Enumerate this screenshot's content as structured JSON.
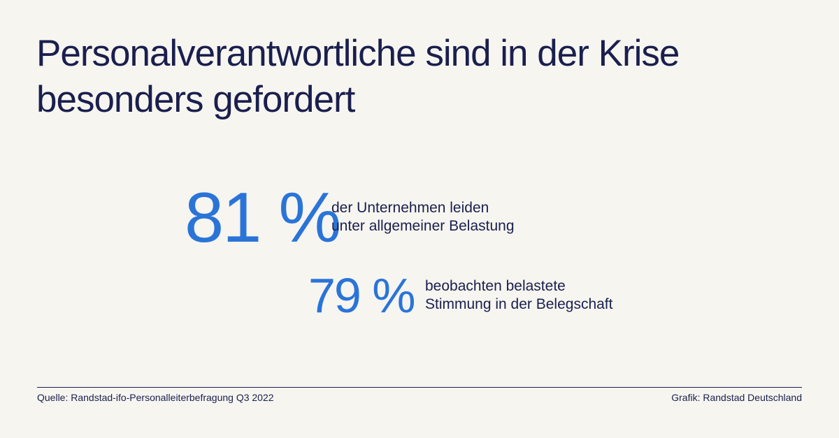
{
  "title": {
    "lines": [
      "Personalverantwortliche sind in der Krise",
      "besonders gefordert"
    ]
  },
  "stats": [
    {
      "value": "81 %",
      "description": [
        "der Unternehmen leiden",
        "unter allgemeiner Belastung"
      ]
    },
    {
      "value": "79 %",
      "description": [
        "beobachten belastete",
        "Stimmung in der Belegschaft"
      ]
    }
  ],
  "footer": {
    "source": "Quelle: Randstad-ifo-Personalleiterbefragung Q3 2022",
    "credit": "Grafik: Randstad Deutschland"
  },
  "colors": {
    "accent": "#2a74d8",
    "text": "#1a1f4e",
    "background": "#f6f5f0"
  }
}
